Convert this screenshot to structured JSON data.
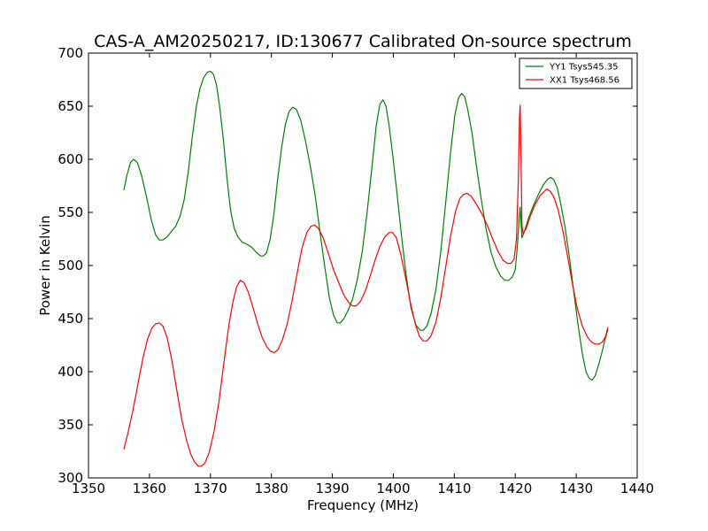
{
  "chart_data": {
    "type": "line",
    "title": "CAS-A_AM20250217, ID:130677 Calibrated On-source spectrum",
    "xlabel": "Frequency (MHz)",
    "ylabel": "Power in Kelvin",
    "xlim": [
      1350,
      1440
    ],
    "ylim": [
      300,
      700
    ],
    "xticks": [
      1350,
      1360,
      1370,
      1380,
      1390,
      1400,
      1410,
      1420,
      1430,
      1440
    ],
    "xtick_labels": [
      "1350",
      "1360",
      "1370",
      "1380",
      "1390",
      "1400",
      "1410",
      "1420",
      "1430",
      "1440"
    ],
    "yticks": [
      300,
      350,
      400,
      450,
      500,
      550,
      600,
      650,
      700
    ],
    "ytick_labels": [
      "300",
      "350",
      "400",
      "450",
      "500",
      "550",
      "600",
      "650",
      "700"
    ],
    "grid": false,
    "legend_position": "top-right",
    "series": [
      {
        "name": "YY1 Tsys545.35",
        "color": "#008000",
        "points": [
          [
            1355.8,
            571
          ],
          [
            1356.3,
            585
          ],
          [
            1356.9,
            597
          ],
          [
            1357.4,
            600
          ],
          [
            1358.0,
            597
          ],
          [
            1358.7,
            585
          ],
          [
            1359.5,
            565
          ],
          [
            1360.3,
            543
          ],
          [
            1361.0,
            529
          ],
          [
            1361.6,
            524
          ],
          [
            1362.2,
            524
          ],
          [
            1362.9,
            527
          ],
          [
            1363.6,
            532
          ],
          [
            1364.3,
            537
          ],
          [
            1365.0,
            546
          ],
          [
            1365.7,
            562
          ],
          [
            1366.4,
            590
          ],
          [
            1367.0,
            620
          ],
          [
            1367.7,
            650
          ],
          [
            1368.3,
            667
          ],
          [
            1368.9,
            677
          ],
          [
            1369.5,
            682
          ],
          [
            1370.0,
            683
          ],
          [
            1370.5,
            680
          ],
          [
            1371.0,
            670
          ],
          [
            1371.5,
            650
          ],
          [
            1372.1,
            620
          ],
          [
            1372.7,
            583
          ],
          [
            1373.3,
            552
          ],
          [
            1373.9,
            535
          ],
          [
            1374.5,
            527
          ],
          [
            1375.2,
            522
          ],
          [
            1376.0,
            520
          ],
          [
            1376.8,
            517
          ],
          [
            1377.6,
            512
          ],
          [
            1378.2,
            509
          ],
          [
            1378.7,
            509
          ],
          [
            1379.2,
            512
          ],
          [
            1379.8,
            525
          ],
          [
            1380.4,
            548
          ],
          [
            1381.0,
            580
          ],
          [
            1381.7,
            612
          ],
          [
            1382.3,
            633
          ],
          [
            1382.9,
            645
          ],
          [
            1383.5,
            649
          ],
          [
            1384.1,
            647
          ],
          [
            1384.8,
            637
          ],
          [
            1385.6,
            617
          ],
          [
            1386.4,
            593
          ],
          [
            1387.2,
            565
          ],
          [
            1388.0,
            530
          ],
          [
            1388.8,
            497
          ],
          [
            1389.5,
            470
          ],
          [
            1390.2,
            453
          ],
          [
            1390.8,
            446
          ],
          [
            1391.3,
            446
          ],
          [
            1391.9,
            450
          ],
          [
            1392.6,
            458
          ],
          [
            1393.3,
            468
          ],
          [
            1394.1,
            487
          ],
          [
            1394.9,
            513
          ],
          [
            1395.7,
            550
          ],
          [
            1396.5,
            593
          ],
          [
            1397.2,
            632
          ],
          [
            1397.8,
            652
          ],
          [
            1398.3,
            656
          ],
          [
            1398.8,
            650
          ],
          [
            1399.3,
            632
          ],
          [
            1399.9,
            604
          ],
          [
            1400.6,
            568
          ],
          [
            1401.3,
            530
          ],
          [
            1402.1,
            491
          ],
          [
            1402.9,
            460
          ],
          [
            1403.7,
            444
          ],
          [
            1404.4,
            439
          ],
          [
            1404.9,
            439
          ],
          [
            1405.5,
            443
          ],
          [
            1406.2,
            455
          ],
          [
            1407.0,
            478
          ],
          [
            1407.8,
            514
          ],
          [
            1408.6,
            560
          ],
          [
            1409.4,
            607
          ],
          [
            1410.1,
            642
          ],
          [
            1410.7,
            658
          ],
          [
            1411.2,
            662
          ],
          [
            1411.7,
            659
          ],
          [
            1412.2,
            647
          ],
          [
            1412.9,
            625
          ],
          [
            1413.6,
            595
          ],
          [
            1414.4,
            563
          ],
          [
            1415.2,
            535
          ],
          [
            1416.0,
            513
          ],
          [
            1416.8,
            499
          ],
          [
            1417.6,
            490
          ],
          [
            1418.3,
            486
          ],
          [
            1418.9,
            486
          ],
          [
            1419.5,
            489
          ],
          [
            1420.0,
            496
          ],
          [
            1420.3,
            515
          ],
          [
            1420.6,
            540
          ],
          [
            1420.8,
            555
          ],
          [
            1420.95,
            540
          ],
          [
            1421.1,
            526
          ],
          [
            1421.5,
            532
          ],
          [
            1422.2,
            545
          ],
          [
            1423.0,
            557
          ],
          [
            1423.8,
            567
          ],
          [
            1424.6,
            576
          ],
          [
            1425.3,
            581
          ],
          [
            1425.8,
            583
          ],
          [
            1426.3,
            581
          ],
          [
            1426.9,
            573
          ],
          [
            1427.5,
            557
          ],
          [
            1428.2,
            535
          ],
          [
            1428.9,
            507
          ],
          [
            1429.6,
            475
          ],
          [
            1430.3,
            444
          ],
          [
            1431.0,
            417
          ],
          [
            1431.6,
            400
          ],
          [
            1432.1,
            394
          ],
          [
            1432.6,
            392
          ],
          [
            1433.1,
            396
          ],
          [
            1433.7,
            407
          ],
          [
            1434.3,
            420
          ],
          [
            1434.8,
            432
          ],
          [
            1435.2,
            440
          ]
        ]
      },
      {
        "name": "XX1 Tsys468.56",
        "color": "#ff0000",
        "points": [
          [
            1355.8,
            327
          ],
          [
            1356.5,
            343
          ],
          [
            1357.3,
            364
          ],
          [
            1358.1,
            388
          ],
          [
            1358.9,
            412
          ],
          [
            1359.7,
            431
          ],
          [
            1360.4,
            441
          ],
          [
            1361.0,
            445
          ],
          [
            1361.6,
            446
          ],
          [
            1362.2,
            443
          ],
          [
            1362.9,
            432
          ],
          [
            1363.7,
            410
          ],
          [
            1364.5,
            382
          ],
          [
            1365.3,
            355
          ],
          [
            1366.1,
            335
          ],
          [
            1366.8,
            322
          ],
          [
            1367.4,
            315
          ],
          [
            1368.0,
            311
          ],
          [
            1368.5,
            311
          ],
          [
            1369.1,
            314
          ],
          [
            1369.8,
            324
          ],
          [
            1370.6,
            344
          ],
          [
            1371.4,
            372
          ],
          [
            1372.2,
            408
          ],
          [
            1373.0,
            443
          ],
          [
            1373.7,
            466
          ],
          [
            1374.3,
            480
          ],
          [
            1374.9,
            486
          ],
          [
            1375.5,
            484
          ],
          [
            1376.2,
            475
          ],
          [
            1376.9,
            462
          ],
          [
            1377.7,
            446
          ],
          [
            1378.5,
            432
          ],
          [
            1379.3,
            423
          ],
          [
            1379.9,
            419
          ],
          [
            1380.5,
            418
          ],
          [
            1381.1,
            421
          ],
          [
            1381.8,
            430
          ],
          [
            1382.6,
            445
          ],
          [
            1383.4,
            467
          ],
          [
            1384.2,
            492
          ],
          [
            1385.0,
            516
          ],
          [
            1385.8,
            531
          ],
          [
            1386.5,
            537
          ],
          [
            1387.1,
            538
          ],
          [
            1387.7,
            535
          ],
          [
            1388.5,
            526
          ],
          [
            1389.3,
            512
          ],
          [
            1390.2,
            496
          ],
          [
            1391.1,
            483
          ],
          [
            1391.9,
            472
          ],
          [
            1392.7,
            465
          ],
          [
            1393.3,
            462
          ],
          [
            1393.9,
            462
          ],
          [
            1394.6,
            466
          ],
          [
            1395.4,
            476
          ],
          [
            1396.2,
            490
          ],
          [
            1397.0,
            505
          ],
          [
            1397.8,
            518
          ],
          [
            1398.6,
            527
          ],
          [
            1399.3,
            531
          ],
          [
            1399.9,
            531
          ],
          [
            1400.5,
            526
          ],
          [
            1401.2,
            511
          ],
          [
            1402.0,
            489
          ],
          [
            1402.8,
            465
          ],
          [
            1403.6,
            445
          ],
          [
            1404.3,
            433
          ],
          [
            1404.9,
            429
          ],
          [
            1405.5,
            429
          ],
          [
            1406.2,
            434
          ],
          [
            1407.0,
            447
          ],
          [
            1407.8,
            470
          ],
          [
            1408.6,
            499
          ],
          [
            1409.4,
            528
          ],
          [
            1410.2,
            551
          ],
          [
            1410.9,
            563
          ],
          [
            1411.5,
            567
          ],
          [
            1412.1,
            568
          ],
          [
            1412.8,
            565
          ],
          [
            1413.6,
            558
          ],
          [
            1414.5,
            549
          ],
          [
            1415.4,
            538
          ],
          [
            1416.3,
            525
          ],
          [
            1417.2,
            513
          ],
          [
            1418.0,
            505
          ],
          [
            1418.7,
            502
          ],
          [
            1419.3,
            502
          ],
          [
            1419.8,
            506
          ],
          [
            1420.2,
            525
          ],
          [
            1420.5,
            580
          ],
          [
            1420.7,
            640
          ],
          [
            1420.8,
            651
          ],
          [
            1420.95,
            600
          ],
          [
            1421.1,
            537
          ],
          [
            1421.3,
            530
          ],
          [
            1421.8,
            535
          ],
          [
            1422.5,
            547
          ],
          [
            1423.3,
            558
          ],
          [
            1424.1,
            566
          ],
          [
            1424.8,
            570
          ],
          [
            1425.2,
            572
          ],
          [
            1425.7,
            570
          ],
          [
            1426.3,
            565
          ],
          [
            1427.0,
            553
          ],
          [
            1427.8,
            533
          ],
          [
            1428.6,
            508
          ],
          [
            1429.4,
            482
          ],
          [
            1430.2,
            459
          ],
          [
            1431.0,
            443
          ],
          [
            1431.8,
            433
          ],
          [
            1432.5,
            428
          ],
          [
            1433.1,
            426
          ],
          [
            1433.7,
            426
          ],
          [
            1434.3,
            428
          ],
          [
            1434.8,
            433
          ],
          [
            1435.2,
            442
          ]
        ]
      }
    ]
  }
}
